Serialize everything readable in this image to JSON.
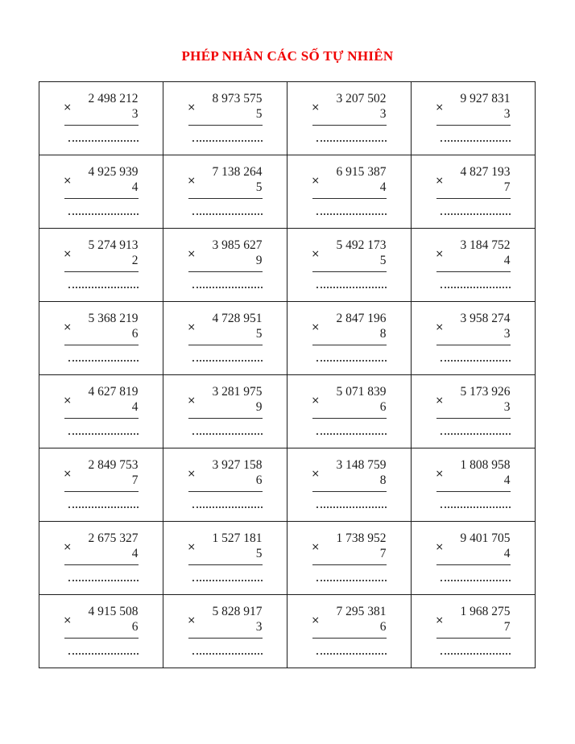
{
  "title": "PHÉP NHÂN CÁC SỐ TỰ NHIÊN",
  "times_symbol": "×",
  "colors": {
    "title": "#f00000",
    "border": "#1b1b1b"
  },
  "problems": [
    {
      "multiplicand": "2 498 212",
      "multiplier": "3"
    },
    {
      "multiplicand": "8 973 575",
      "multiplier": "5"
    },
    {
      "multiplicand": "3 207 502",
      "multiplier": "3"
    },
    {
      "multiplicand": "9 927 831",
      "multiplier": "3"
    },
    {
      "multiplicand": "4 925 939",
      "multiplier": "4"
    },
    {
      "multiplicand": "7 138 264",
      "multiplier": "5"
    },
    {
      "multiplicand": "6 915 387",
      "multiplier": "4"
    },
    {
      "multiplicand": "4 827 193",
      "multiplier": "7"
    },
    {
      "multiplicand": "5 274 913",
      "multiplier": "2"
    },
    {
      "multiplicand": "3 985 627",
      "multiplier": "9"
    },
    {
      "multiplicand": "5 492 173",
      "multiplier": "5"
    },
    {
      "multiplicand": "3 184 752",
      "multiplier": "4"
    },
    {
      "multiplicand": "5 368 219",
      "multiplier": "6"
    },
    {
      "multiplicand": "4 728 951",
      "multiplier": "5"
    },
    {
      "multiplicand": "2 847 196",
      "multiplier": "8"
    },
    {
      "multiplicand": "3 958 274",
      "multiplier": "3"
    },
    {
      "multiplicand": "4 627 819",
      "multiplier": "4"
    },
    {
      "multiplicand": "3 281 975",
      "multiplier": "9"
    },
    {
      "multiplicand": "5 071 839",
      "multiplier": "6"
    },
    {
      "multiplicand": "5 173 926",
      "multiplier": "3"
    },
    {
      "multiplicand": "2 849 753",
      "multiplier": "7"
    },
    {
      "multiplicand": "3 927 158",
      "multiplier": "6"
    },
    {
      "multiplicand": "3 148 759",
      "multiplier": "8"
    },
    {
      "multiplicand": "1 808 958",
      "multiplier": "4"
    },
    {
      "multiplicand": "2 675 327",
      "multiplier": "4"
    },
    {
      "multiplicand": "1 527 181",
      "multiplier": "5"
    },
    {
      "multiplicand": "1 738 952",
      "multiplier": "7"
    },
    {
      "multiplicand": "9 401 705",
      "multiplier": "4"
    },
    {
      "multiplicand": "4 915 508",
      "multiplier": "6"
    },
    {
      "multiplicand": "5 828 917",
      "multiplier": "3"
    },
    {
      "multiplicand": "7 295 381",
      "multiplier": "6"
    },
    {
      "multiplicand": "1 968 275",
      "multiplier": "7"
    }
  ]
}
